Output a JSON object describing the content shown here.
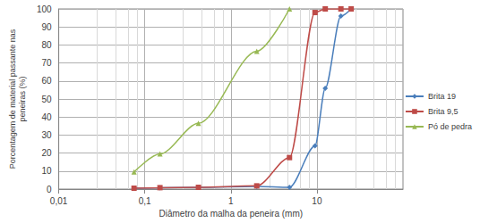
{
  "chart_data": {
    "type": "line",
    "x_label": "Diâmetro da malha da peneira (mm)",
    "y_label": "Porcentagem de material passante nas\npeneiras (%)",
    "log": "x",
    "grid": true,
    "legend": "right",
    "xlim": [
      0.01,
      100
    ],
    "xticks": [
      {
        "value": 0.01,
        "label": "0,01"
      },
      {
        "value": 0.1,
        "label": "0,1"
      },
      1,
      10
    ],
    "ylim": [
      0,
      100
    ],
    "yticks": [
      0,
      10,
      20,
      30,
      40,
      50,
      60,
      70,
      80,
      90,
      100
    ],
    "series": [
      {
        "name": "Brita 19",
        "color": "#4a7ebb",
        "marker": "diamond",
        "line_style": "solid",
        "x": [
          0.075,
          0.15,
          0.42,
          2.0,
          4.8,
          9.5,
          12.5,
          19,
          25
        ],
        "values": [
          0.5,
          0.8,
          1,
          1.5,
          1,
          24,
          56,
          96,
          100
        ]
      },
      {
        "name": "Brita 9,5",
        "color": "#be4b48",
        "marker": "square",
        "line_style": "solid",
        "x": [
          0.075,
          0.15,
          0.42,
          2.0,
          4.8,
          9.5,
          12.5,
          19,
          25
        ],
        "values": [
          0.5,
          0.8,
          1,
          1.8,
          17.5,
          98,
          100,
          100,
          100
        ]
      },
      {
        "name": "Pó de pedra",
        "color": "#98b954",
        "marker": "triangle",
        "line_style": "solid",
        "x": [
          0.075,
          0.15,
          0.42,
          2.0,
          4.8
        ],
        "values": [
          9.5,
          19.5,
          36.5,
          76.5,
          100
        ]
      }
    ]
  }
}
